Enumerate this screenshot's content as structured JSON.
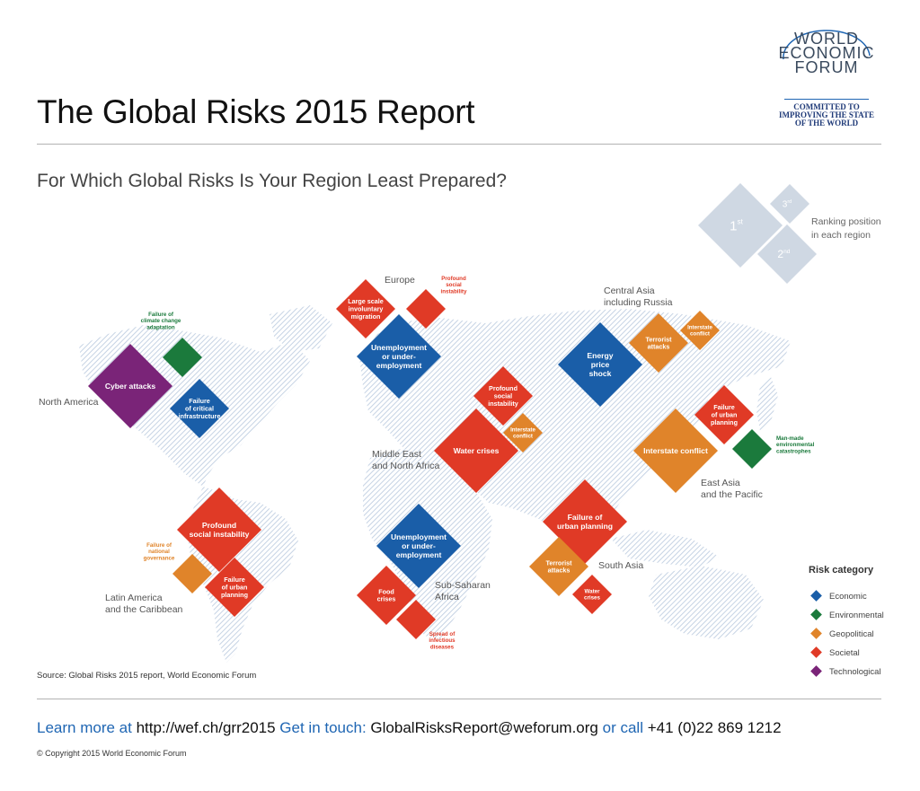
{
  "header": {
    "title": "The Global Risks 2015 Report",
    "subtitle": "For Which Global Risks Is Your Region Least Prepared?"
  },
  "logo": {
    "line1": "WORLD",
    "line2": "ECONOMIC",
    "line3": "FORUM",
    "tagline1": "COMMITTED TO",
    "tagline2": "IMPROVING THE STATE",
    "tagline3": "OF THE WORLD"
  },
  "ranking_key": {
    "first": "1",
    "first_suffix": "st",
    "second": "2",
    "second_suffix": "nd",
    "third": "3",
    "third_suffix": "rd",
    "label_line1": "Ranking position",
    "label_line2": "in each region"
  },
  "colors": {
    "Economic": "#1a5ea8",
    "Environmental": "#1b7a3c",
    "Geopolitical": "#e0842a",
    "Societal": "#e03a26",
    "Technological": "#7a2478",
    "land_hatch": "#c9d5e6",
    "rank_key": "#cfd8e3"
  },
  "regions": [
    {
      "name": "North America",
      "lines": [
        "North America"
      ],
      "risks": [
        {
          "rank": 1,
          "label": [
            "Cyber attacks"
          ],
          "category": "Technological"
        },
        {
          "rank": 2,
          "label": [
            "Failure",
            "of critical",
            "infrastructure"
          ],
          "category": "Economic"
        },
        {
          "rank": 3,
          "label": [
            "Failure of",
            "climate change",
            "adaptation"
          ],
          "category": "Environmental"
        }
      ]
    },
    {
      "name": "Europe",
      "lines": [
        "Europe"
      ],
      "risks": [
        {
          "rank": 1,
          "label": [
            "Unemployment",
            "or under-",
            "employment"
          ],
          "category": "Economic"
        },
        {
          "rank": 2,
          "label": [
            "Large scale",
            "involuntary",
            "migration"
          ],
          "category": "Societal"
        },
        {
          "rank": 3,
          "label": [
            "Profound",
            "social",
            "instability"
          ],
          "category": "Societal"
        }
      ]
    },
    {
      "name": "Central Asia including Russia",
      "lines": [
        "Central Asia",
        "including Russia"
      ],
      "risks": [
        {
          "rank": 1,
          "label": [
            "Energy",
            "price",
            "shock"
          ],
          "category": "Economic"
        },
        {
          "rank": 2,
          "label": [
            "Terrorist",
            "attacks"
          ],
          "category": "Geopolitical"
        },
        {
          "rank": 3,
          "label": [
            "Interstate",
            "conflict"
          ],
          "category": "Geopolitical"
        }
      ]
    },
    {
      "name": "Middle East and North Africa",
      "lines": [
        "Middle East",
        "and North Africa"
      ],
      "risks": [
        {
          "rank": 1,
          "label": [
            "Water crises"
          ],
          "category": "Societal"
        },
        {
          "rank": 2,
          "label": [
            "Profound",
            "social",
            "instability"
          ],
          "category": "Societal"
        },
        {
          "rank": 3,
          "label": [
            "Interstate",
            "conflict"
          ],
          "category": "Geopolitical"
        }
      ]
    },
    {
      "name": "East Asia and the Pacific",
      "lines": [
        "East Asia",
        "and the Pacific"
      ],
      "risks": [
        {
          "rank": 1,
          "label": [
            "Interstate conflict"
          ],
          "category": "Geopolitical"
        },
        {
          "rank": 2,
          "label": [
            "Failure",
            "of urban",
            "planning"
          ],
          "category": "Societal"
        },
        {
          "rank": 3,
          "label": [
            "Man-made",
            "environmental",
            "catastrophes"
          ],
          "category": "Environmental"
        }
      ]
    },
    {
      "name": "South Asia",
      "lines": [
        "South Asia"
      ],
      "risks": [
        {
          "rank": 1,
          "label": [
            "Failure of",
            "urban planning"
          ],
          "category": "Societal"
        },
        {
          "rank": 2,
          "label": [
            "Terrorist",
            "attacks"
          ],
          "category": "Geopolitical"
        },
        {
          "rank": 3,
          "label": [
            "Water",
            "crises"
          ],
          "category": "Societal"
        }
      ]
    },
    {
      "name": "Sub-Saharan Africa",
      "lines": [
        "Sub-Saharan",
        "Africa"
      ],
      "risks": [
        {
          "rank": 1,
          "label": [
            "Unemployment",
            "or under-",
            "employment"
          ],
          "category": "Economic"
        },
        {
          "rank": 2,
          "label": [
            "Food",
            "crises"
          ],
          "category": "Societal"
        },
        {
          "rank": 3,
          "label": [
            "Spread of",
            "infectious",
            "diseases"
          ],
          "category": "Societal"
        }
      ]
    },
    {
      "name": "Latin America and the Caribbean",
      "lines": [
        "Latin America",
        "and the Caribbean"
      ],
      "risks": [
        {
          "rank": 1,
          "label": [
            "Profound",
            "social instability"
          ],
          "category": "Societal"
        },
        {
          "rank": 2,
          "label": [
            "Failure",
            "of urban",
            "planning"
          ],
          "category": "Societal"
        },
        {
          "rank": 3,
          "label": [
            "Failure of",
            "national",
            "governance"
          ],
          "category": "Geopolitical"
        }
      ]
    }
  ],
  "legend": {
    "title": "Risk category",
    "items": [
      "Economic",
      "Environmental",
      "Geopolitical",
      "Societal",
      "Technological"
    ]
  },
  "source": "Source: Global Risks 2015 report, World Economic Forum",
  "footer": {
    "learn_more": "Learn more at",
    "url": "http://wef.ch/grr2015",
    "get_in_touch": "Get in touch:",
    "email": "GlobalRisksReport@weforum.org",
    "or_call": "or call",
    "phone": "+41 (0)22 869 1212"
  },
  "copyright": "© Copyright 2015 World Economic Forum"
}
